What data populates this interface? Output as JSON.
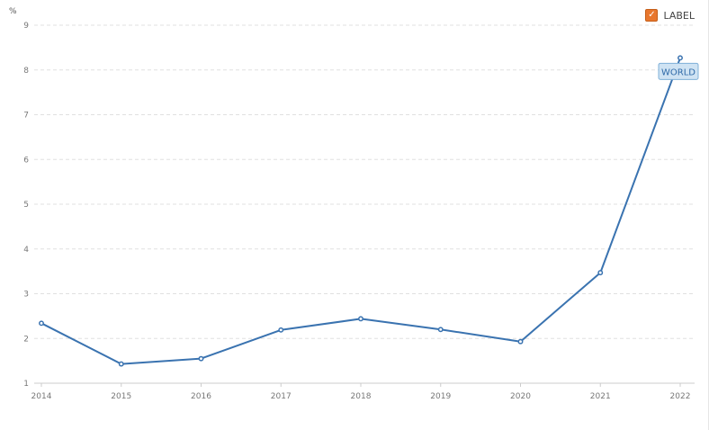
{
  "legend": {
    "label": "LABEL",
    "checked": true,
    "checkbox_color": "#e8772e",
    "check_glyph": "✓"
  },
  "chart_data": {
    "type": "line",
    "title": "",
    "xlabel": "",
    "ylabel": "%",
    "x": [
      "2014",
      "2015",
      "2016",
      "2017",
      "2018",
      "2019",
      "2020",
      "2021",
      "2022"
    ],
    "series": [
      {
        "name": "WORLD",
        "color": "#3a73b0",
        "values": [
          2.34,
          1.43,
          1.55,
          2.19,
          2.44,
          2.2,
          1.93,
          3.47,
          8.27
        ]
      }
    ],
    "ylim": [
      1,
      9
    ],
    "yticks": [
      1,
      2,
      3,
      4,
      5,
      6,
      7,
      8,
      9
    ],
    "grid": true,
    "legend_position": "top-right"
  }
}
